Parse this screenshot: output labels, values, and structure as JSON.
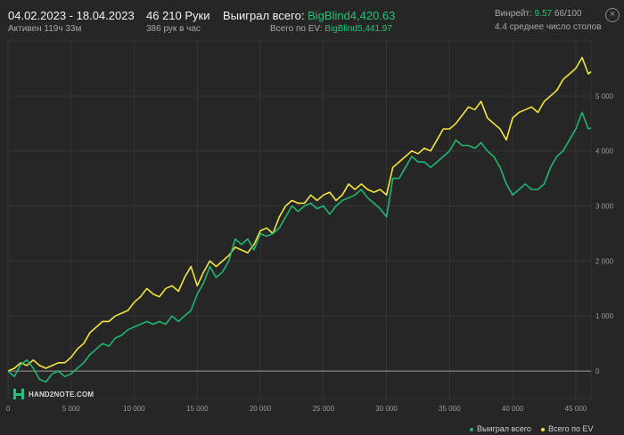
{
  "header": {
    "date_range": "04.02.2023 - 18.04.2023",
    "active_time": "Активен 119ч 33м",
    "hands": "46 210 Руки",
    "hands_per_hour": "386 рук в час",
    "won_label": "Выиграл всего:",
    "won_value": "BigBlind4,420.63",
    "ev_label": "Всего по EV:",
    "ev_value": "BigBlind5,441.97",
    "winrate_label": "Винрейт:",
    "winrate_value": "9.57",
    "winrate_suffix": "66/100",
    "tables": "4.4 среднее число столов"
  },
  "close_icon": "close-icon",
  "logo": {
    "text": "HAND2NOTE.COM",
    "icon": "hand2note-logo-icon"
  },
  "colors": {
    "won": "#1fb574",
    "ev": "#f2e63a",
    "grid": "#3a3a3a",
    "background": "#262626"
  },
  "chart_data": {
    "type": "line",
    "xlim": [
      0,
      46210
    ],
    "ylim": [
      -500,
      6000
    ],
    "x_ticks": [
      0,
      5000,
      10000,
      15000,
      20000,
      25000,
      30000,
      35000,
      40000,
      45000
    ],
    "x_tick_labels": [
      "0",
      "5 000",
      "10 000",
      "15 000",
      "20 000",
      "25 000",
      "30 000",
      "35 000",
      "40 000",
      "45 000"
    ],
    "y_ticks": [
      0,
      1000,
      2000,
      3000,
      4000,
      5000
    ],
    "y_tick_labels": [
      "0",
      "1 000",
      "2 000",
      "3 000",
      "4 000",
      "5 000"
    ],
    "grid": true,
    "legend_position": "bottom-right",
    "series": [
      {
        "name": "Выиграл всего",
        "color": "#1fb574",
        "points": [
          [
            0,
            0
          ],
          [
            500,
            -100
          ],
          [
            1000,
            120
          ],
          [
            1500,
            200
          ],
          [
            2000,
            50
          ],
          [
            2500,
            -150
          ],
          [
            3000,
            -200
          ],
          [
            3500,
            -50
          ],
          [
            4000,
            0
          ],
          [
            4500,
            -100
          ],
          [
            5000,
            -50
          ],
          [
            5500,
            50
          ],
          [
            6000,
            150
          ],
          [
            6500,
            300
          ],
          [
            7000,
            400
          ],
          [
            7500,
            500
          ],
          [
            8000,
            450
          ],
          [
            8500,
            600
          ],
          [
            9000,
            650
          ],
          [
            9500,
            750
          ],
          [
            10000,
            800
          ],
          [
            10500,
            850
          ],
          [
            11000,
            900
          ],
          [
            11500,
            850
          ],
          [
            12000,
            900
          ],
          [
            12500,
            850
          ],
          [
            13000,
            1000
          ],
          [
            13500,
            900
          ],
          [
            14000,
            1000
          ],
          [
            14500,
            1100
          ],
          [
            15000,
            1400
          ],
          [
            15500,
            1600
          ],
          [
            16000,
            1900
          ],
          [
            16500,
            1700
          ],
          [
            17000,
            1800
          ],
          [
            17500,
            2000
          ],
          [
            18000,
            2400
          ],
          [
            18500,
            2300
          ],
          [
            19000,
            2400
          ],
          [
            19500,
            2200
          ],
          [
            20000,
            2500
          ],
          [
            20500,
            2450
          ],
          [
            21000,
            2500
          ],
          [
            21500,
            2600
          ],
          [
            22000,
            2800
          ],
          [
            22500,
            3000
          ],
          [
            23000,
            2900
          ],
          [
            23500,
            3000
          ],
          [
            24000,
            3050
          ],
          [
            24500,
            2950
          ],
          [
            25000,
            3000
          ],
          [
            25500,
            2850
          ],
          [
            26000,
            3000
          ],
          [
            26500,
            3100
          ],
          [
            27000,
            3150
          ],
          [
            27500,
            3200
          ],
          [
            28000,
            3300
          ],
          [
            28500,
            3150
          ],
          [
            29000,
            3050
          ],
          [
            29500,
            2950
          ],
          [
            30000,
            2800
          ],
          [
            30500,
            3500
          ],
          [
            31000,
            3500
          ],
          [
            31500,
            3700
          ],
          [
            32000,
            3900
          ],
          [
            32500,
            3800
          ],
          [
            33000,
            3800
          ],
          [
            33500,
            3700
          ],
          [
            34000,
            3800
          ],
          [
            34500,
            3900
          ],
          [
            35000,
            4000
          ],
          [
            35500,
            4200
          ],
          [
            36000,
            4100
          ],
          [
            36500,
            4100
          ],
          [
            37000,
            4050
          ],
          [
            37500,
            4150
          ],
          [
            38000,
            4000
          ],
          [
            38500,
            3900
          ],
          [
            39000,
            3700
          ],
          [
            39500,
            3400
          ],
          [
            40000,
            3200
          ],
          [
            40500,
            3300
          ],
          [
            41000,
            3400
          ],
          [
            41500,
            3300
          ],
          [
            42000,
            3300
          ],
          [
            42500,
            3400
          ],
          [
            43000,
            3700
          ],
          [
            43500,
            3900
          ],
          [
            44000,
            4000
          ],
          [
            44500,
            4200
          ],
          [
            45000,
            4400
          ],
          [
            45500,
            4700
          ],
          [
            46000,
            4400
          ],
          [
            46210,
            4420.63
          ]
        ]
      },
      {
        "name": "Всего по EV",
        "color": "#f2e63a",
        "points": [
          [
            0,
            0
          ],
          [
            500,
            50
          ],
          [
            1000,
            150
          ],
          [
            1500,
            100
          ],
          [
            2000,
            200
          ],
          [
            2500,
            100
          ],
          [
            3000,
            50
          ],
          [
            3500,
            100
          ],
          [
            4000,
            150
          ],
          [
            4500,
            150
          ],
          [
            5000,
            250
          ],
          [
            5500,
            400
          ],
          [
            6000,
            500
          ],
          [
            6500,
            700
          ],
          [
            7000,
            800
          ],
          [
            7500,
            900
          ],
          [
            8000,
            900
          ],
          [
            8500,
            1000
          ],
          [
            9000,
            1050
          ],
          [
            9500,
            1100
          ],
          [
            10000,
            1250
          ],
          [
            10500,
            1350
          ],
          [
            11000,
            1500
          ],
          [
            11500,
            1400
          ],
          [
            12000,
            1350
          ],
          [
            12500,
            1500
          ],
          [
            13000,
            1550
          ],
          [
            13500,
            1450
          ],
          [
            14000,
            1700
          ],
          [
            14500,
            1900
          ],
          [
            15000,
            1550
          ],
          [
            15500,
            1800
          ],
          [
            16000,
            2000
          ],
          [
            16500,
            1900
          ],
          [
            17000,
            2000
          ],
          [
            17500,
            2100
          ],
          [
            18000,
            2250
          ],
          [
            18500,
            2200
          ],
          [
            19000,
            2150
          ],
          [
            19500,
            2300
          ],
          [
            20000,
            2550
          ],
          [
            20500,
            2600
          ],
          [
            21000,
            2500
          ],
          [
            21500,
            2800
          ],
          [
            22000,
            3000
          ],
          [
            22500,
            3100
          ],
          [
            23000,
            3050
          ],
          [
            23500,
            3050
          ],
          [
            24000,
            3200
          ],
          [
            24500,
            3100
          ],
          [
            25000,
            3200
          ],
          [
            25500,
            3250
          ],
          [
            26000,
            3100
          ],
          [
            26500,
            3200
          ],
          [
            27000,
            3400
          ],
          [
            27500,
            3300
          ],
          [
            28000,
            3400
          ],
          [
            28500,
            3300
          ],
          [
            29000,
            3250
          ],
          [
            29500,
            3300
          ],
          [
            30000,
            3200
          ],
          [
            30500,
            3700
          ],
          [
            31000,
            3800
          ],
          [
            31500,
            3900
          ],
          [
            32000,
            4000
          ],
          [
            32500,
            3950
          ],
          [
            33000,
            4050
          ],
          [
            33500,
            4000
          ],
          [
            34000,
            4200
          ],
          [
            34500,
            4400
          ],
          [
            35000,
            4400
          ],
          [
            35500,
            4500
          ],
          [
            36000,
            4650
          ],
          [
            36500,
            4800
          ],
          [
            37000,
            4750
          ],
          [
            37500,
            4900
          ],
          [
            38000,
            4600
          ],
          [
            38500,
            4500
          ],
          [
            39000,
            4400
          ],
          [
            39500,
            4200
          ],
          [
            40000,
            4600
          ],
          [
            40500,
            4700
          ],
          [
            41000,
            4750
          ],
          [
            41500,
            4800
          ],
          [
            42000,
            4700
          ],
          [
            42500,
            4900
          ],
          [
            43000,
            5000
          ],
          [
            43500,
            5100
          ],
          [
            44000,
            5300
          ],
          [
            44500,
            5400
          ],
          [
            45000,
            5500
          ],
          [
            45500,
            5700
          ],
          [
            46000,
            5400
          ],
          [
            46210,
            5441.97
          ]
        ]
      }
    ]
  }
}
